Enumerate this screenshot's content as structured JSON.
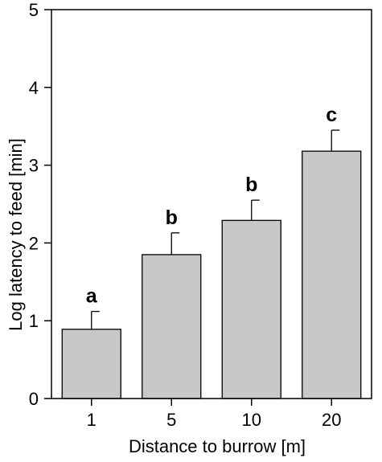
{
  "chart_data": {
    "type": "bar",
    "categories": [
      "1",
      "5",
      "10",
      "20"
    ],
    "values": [
      0.89,
      1.85,
      2.29,
      3.18
    ],
    "errors": [
      0.23,
      0.28,
      0.26,
      0.27
    ],
    "significance_labels": [
      "a",
      "b",
      "b",
      "c"
    ],
    "xlabel": "Distance to burrow [m]",
    "ylabel": "Log latency to feed [min]",
    "ylim": [
      0,
      5
    ],
    "yticks": [
      "0",
      "1",
      "2",
      "3",
      "4",
      "5"
    ],
    "grid": false,
    "legend": "none",
    "bar_color": "#c8c8c8"
  }
}
